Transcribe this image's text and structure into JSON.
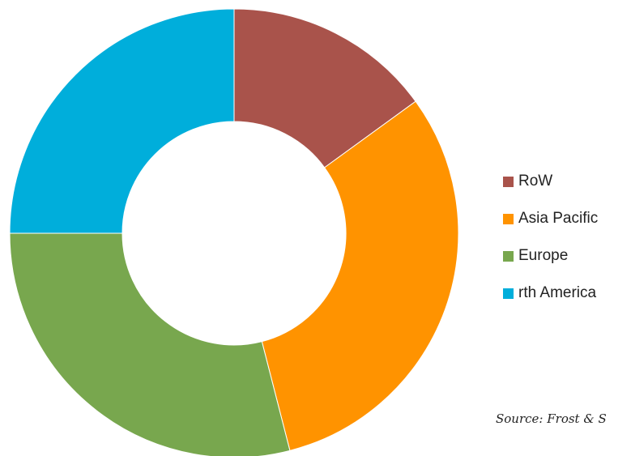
{
  "chart_data": {
    "type": "donut",
    "categories": [
      "RoW",
      "Asia Pacific",
      "Europe",
      "rth America"
    ],
    "values": [
      15,
      31,
      29,
      25
    ],
    "colors": [
      "#A9534B",
      "#FF9300",
      "#78A74E",
      "#00AEDB"
    ],
    "legend_position": "right",
    "source_note": "Source: Frost & S"
  }
}
